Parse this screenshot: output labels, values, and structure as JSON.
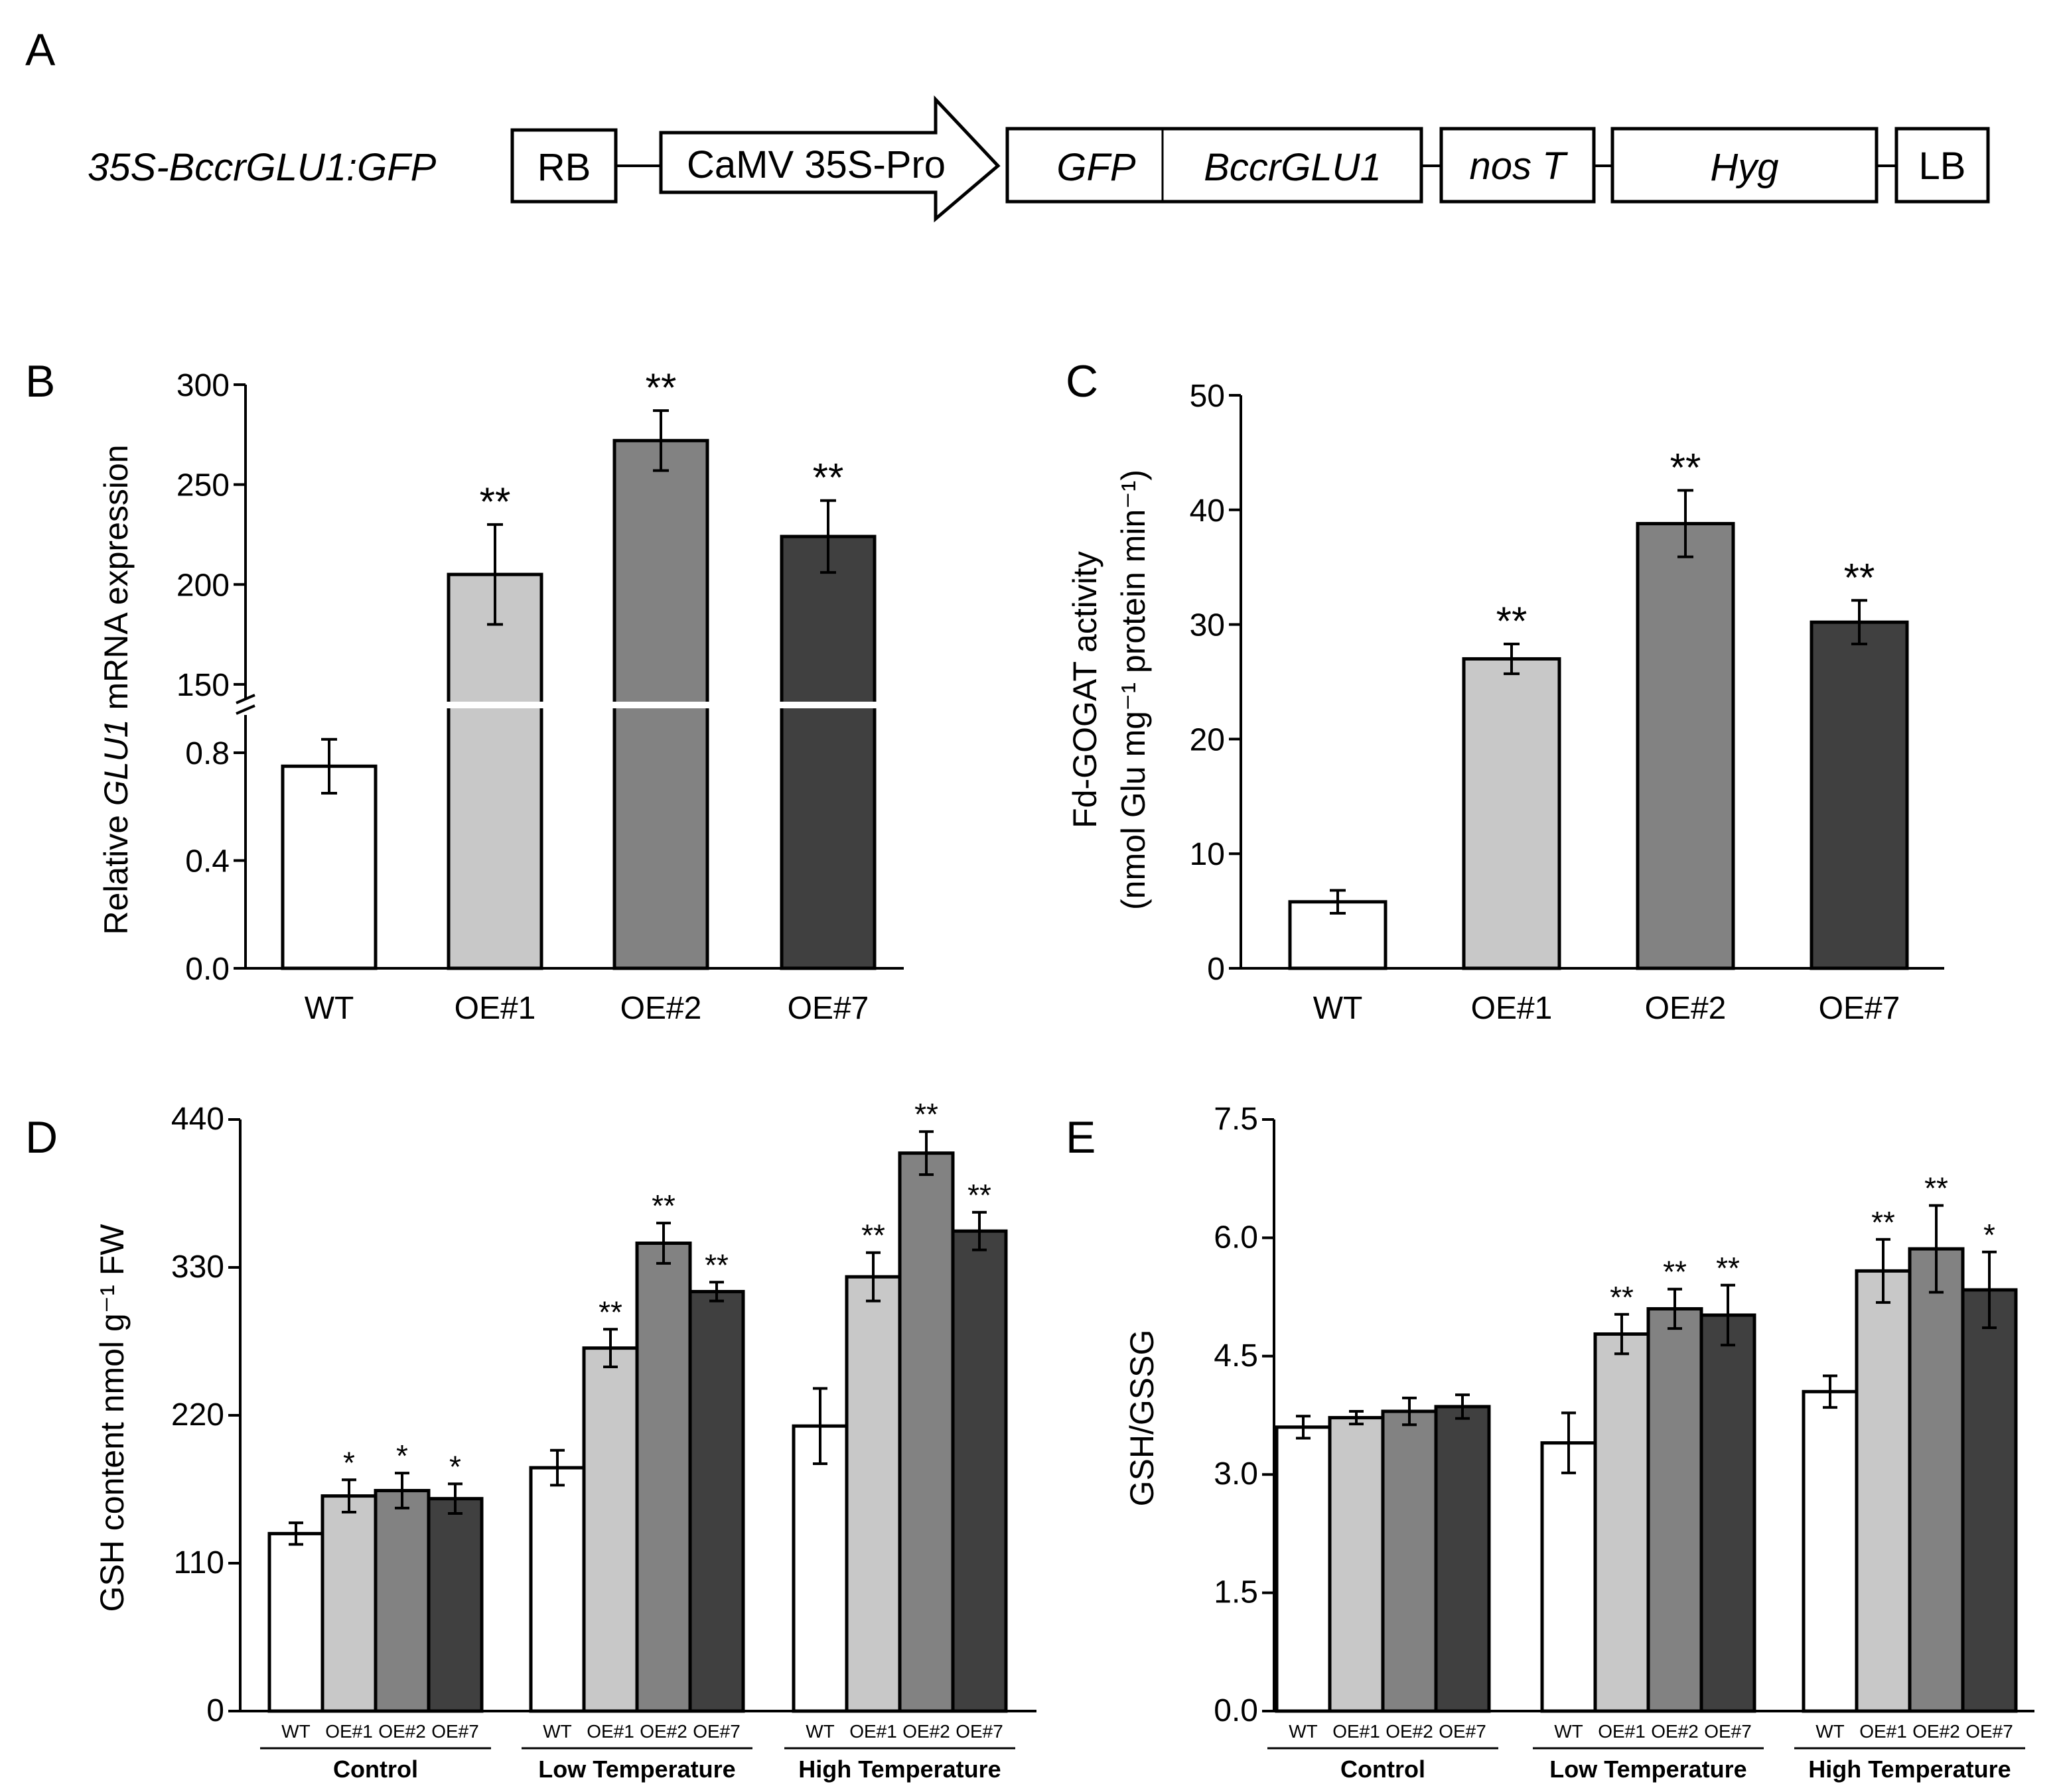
{
  "colors": {
    "WT": "#ffffff",
    "OE#1": "#c8c8c8",
    "OE#2": "#828282",
    "OE#7": "#404040"
  },
  "panel_a": {
    "letter": "A",
    "construct_label": "35S-BccrGLU1:GFP",
    "boxes": {
      "rb": "RB",
      "promoter": "CaMV 35S-Pro",
      "gfp": "GFP",
      "gene": "BccrGLU1",
      "term": "nos T",
      "hyg": "Hyg",
      "lb": "LB"
    }
  },
  "chart_data": [
    {
      "id": "B",
      "letter": "B",
      "type": "bar",
      "title": "",
      "ylabel_prefix": "Relative ",
      "ylabel_gene": "GLU1",
      "ylabel_suffix": " mRNA expression",
      "categories": [
        "WT",
        "OE#1",
        "OE#2",
        "OE#7"
      ],
      "values": [
        0.75,
        205,
        272,
        224
      ],
      "errors": [
        0.1,
        25,
        15,
        18
      ],
      "significance": [
        "",
        "**",
        "**",
        "**"
      ],
      "axis_break": true,
      "lower_range": [
        0,
        0.96
      ],
      "upper_range": [
        140,
        300
      ],
      "yticks_lower": [
        "0.0",
        "0.4",
        "0.8"
      ],
      "yticks_upper": [
        "150",
        "200",
        "250",
        "300"
      ]
    },
    {
      "id": "C",
      "letter": "C",
      "type": "bar",
      "title": "",
      "ylabel_line1": "Fd-GOGAT activity",
      "ylabel_line2": "(nmol Glu mg⁻¹ protein min⁻¹)",
      "categories": [
        "WT",
        "OE#1",
        "OE#2",
        "OE#7"
      ],
      "values": [
        5.8,
        27,
        38.8,
        30.2
      ],
      "errors": [
        1.0,
        1.3,
        2.9,
        1.9
      ],
      "significance": [
        "",
        "**",
        "**",
        "**"
      ],
      "ylim": [
        0,
        50
      ],
      "yticks": [
        "0",
        "10",
        "20",
        "30",
        "40",
        "50"
      ]
    },
    {
      "id": "D",
      "letter": "D",
      "type": "bar",
      "title": "",
      "ylabel": "GSH content nmol g⁻¹ FW",
      "groups": [
        "Control",
        "Low Temperature",
        "High Temperature"
      ],
      "series": [
        {
          "name": "WT",
          "values": [
            132,
            181,
            212
          ]
        },
        {
          "name": "OE#1",
          "values": [
            160,
            270,
            323
          ]
        },
        {
          "name": "OE#2",
          "values": [
            164,
            348,
            415
          ]
        },
        {
          "name": "OE#7",
          "values": [
            158,
            312,
            357
          ]
        }
      ],
      "errors": [
        [
          8,
          13,
          28
        ],
        [
          12,
          14,
          18
        ],
        [
          13,
          15,
          16
        ],
        [
          11,
          7,
          14
        ]
      ],
      "significance": [
        [
          "",
          "",
          ""
        ],
        [
          "*",
          "**",
          "**"
        ],
        [
          "*",
          "**",
          "**"
        ],
        [
          "*",
          "**",
          "**"
        ]
      ],
      "ylim": [
        0,
        440
      ],
      "yticks": [
        "0",
        "110",
        "220",
        "330",
        "440"
      ]
    },
    {
      "id": "E",
      "letter": "E",
      "type": "bar",
      "title": "",
      "ylabel": "GSH/GSSG",
      "groups": [
        "Control",
        "Low Temperature",
        "High Temperature"
      ],
      "series": [
        {
          "name": "WT",
          "values": [
            3.6,
            3.4,
            4.05
          ]
        },
        {
          "name": "OE#1",
          "values": [
            3.72,
            4.78,
            5.58
          ]
        },
        {
          "name": "OE#2",
          "values": [
            3.8,
            5.1,
            5.86
          ]
        },
        {
          "name": "OE#7",
          "values": [
            3.86,
            5.02,
            5.34
          ]
        }
      ],
      "errors": [
        [
          0.14,
          0.38,
          0.2
        ],
        [
          0.08,
          0.25,
          0.4
        ],
        [
          0.17,
          0.25,
          0.55
        ],
        [
          0.15,
          0.38,
          0.48
        ]
      ],
      "significance": [
        [
          "",
          "",
          ""
        ],
        [
          "",
          "**",
          "**"
        ],
        [
          "",
          "**",
          "**"
        ],
        [
          "",
          "**",
          "*"
        ]
      ],
      "ylim": [
        0,
        7.5
      ],
      "yticks": [
        "0.0",
        "1.5",
        "3.0",
        "4.5",
        "6.0",
        "7.5"
      ]
    }
  ]
}
